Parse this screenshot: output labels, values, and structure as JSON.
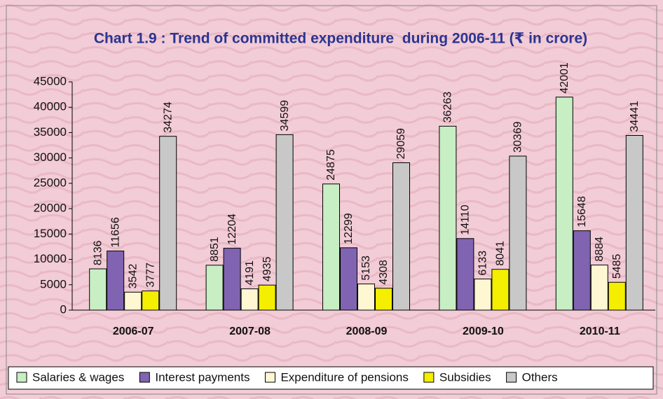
{
  "chart_data": {
    "type": "bar",
    "title": "Chart 1.9 : Trend of committed expenditure  during 2006-11 (₹ in crore)",
    "categories": [
      "2006-07",
      "2007-08",
      "2008-09",
      "2009-10",
      "2010-11"
    ],
    "series": [
      {
        "name": "Salaries & wages",
        "color": "#c8eec4",
        "values": [
          8136,
          8851,
          24875,
          36263,
          42001
        ]
      },
      {
        "name": "Interest payments",
        "color": "#8064b2",
        "values": [
          11656,
          12204,
          12299,
          14110,
          15648
        ]
      },
      {
        "name": "Expenditure of pensions",
        "color": "#fff7d2",
        "values": [
          3542,
          4191,
          5153,
          6133,
          8884
        ]
      },
      {
        "name": "Subsidies",
        "color": "#f4ee00",
        "values": [
          3777,
          4935,
          4308,
          8041,
          5485
        ]
      },
      {
        "name": "Others",
        "color": "#c8c8c8",
        "values": [
          34274,
          34599,
          29059,
          30369,
          34441
        ]
      }
    ],
    "ylim": [
      0,
      45000
    ],
    "yticks": [
      0,
      5000,
      10000,
      15000,
      20000,
      25000,
      30000,
      35000,
      40000,
      45000
    ],
    "grid": false,
    "legend": "bottom"
  }
}
